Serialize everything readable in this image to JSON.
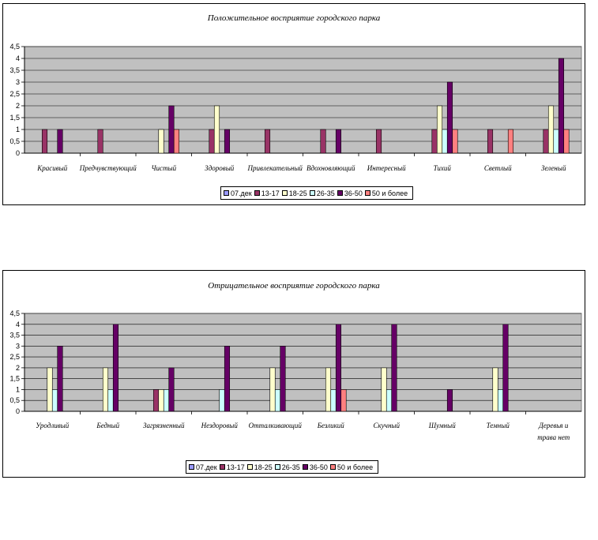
{
  "chart_data": [
    {
      "type": "bar",
      "title": "Положительное восприятие городского парка",
      "categories": [
        "Красивый",
        "Предчувствующий",
        "Чистый",
        "Здоровый",
        "Привлекательный",
        "Вдохновляющий",
        "Интересный",
        "Тихий",
        "Светлый",
        "Зеленый"
      ],
      "ylim": [
        0,
        4.5
      ],
      "yticks": [
        "0",
        "0,5",
        "1",
        "1,5",
        "2",
        "2,5",
        "3",
        "3,5",
        "4",
        "4,5"
      ],
      "grid": true,
      "legend_position": "bottom",
      "series": [
        {
          "name": "07.дек",
          "values": [
            0,
            0,
            0,
            0,
            0,
            0,
            0,
            0,
            0,
            0
          ]
        },
        {
          "name": "13-17",
          "values": [
            1,
            1,
            0,
            1,
            1,
            1,
            1,
            1,
            1,
            1
          ]
        },
        {
          "name": "18-25",
          "values": [
            0,
            0,
            1,
            2,
            0,
            0,
            0,
            2,
            0,
            2
          ]
        },
        {
          "name": "26-35",
          "values": [
            0,
            0,
            0,
            0,
            0,
            0,
            0,
            1,
            0,
            1
          ]
        },
        {
          "name": "36-50",
          "values": [
            1,
            0,
            2,
            1,
            0,
            1,
            0,
            3,
            0,
            4
          ]
        },
        {
          "name": "50 и более",
          "values": [
            0,
            0,
            1,
            0,
            0,
            0,
            0,
            1,
            1,
            1
          ]
        }
      ]
    },
    {
      "type": "bar",
      "title": "Отрицательное восприятие городского парка",
      "categories": [
        "Уродливый",
        "Бедный",
        "Загрязненный",
        "Нездоровый",
        "Отталкивающий",
        "Безликий",
        "Скучный",
        "Шумный",
        "Темный",
        "Деревья и трава нет"
      ],
      "ylim": [
        0,
        4.5
      ],
      "yticks": [
        "0",
        "0,5",
        "1",
        "1,5",
        "2",
        "2,5",
        "3",
        "3,5",
        "4",
        "4,5"
      ],
      "grid": true,
      "legend_position": "bottom",
      "series": [
        {
          "name": "07.дек",
          "values": [
            0,
            0,
            0,
            0,
            0,
            0,
            0,
            0,
            0,
            0
          ]
        },
        {
          "name": "13-17",
          "values": [
            0,
            0,
            1,
            0,
            0,
            0,
            0,
            0,
            0,
            0
          ]
        },
        {
          "name": "18-25",
          "values": [
            2,
            2,
            1,
            0,
            2,
            2,
            2,
            0,
            2,
            0
          ]
        },
        {
          "name": "26-35",
          "values": [
            1,
            1,
            1,
            1,
            1,
            1,
            1,
            0,
            1,
            0
          ]
        },
        {
          "name": "36-50",
          "values": [
            3,
            4,
            2,
            3,
            3,
            4,
            4,
            1,
            4,
            0
          ]
        },
        {
          "name": "50 и более",
          "values": [
            0,
            0,
            0,
            0,
            0,
            1,
            0,
            0,
            0,
            0
          ]
        }
      ]
    }
  ],
  "series_colors": [
    "#9999ff",
    "#993366",
    "#ffffcc",
    "#ccffff",
    "#660066",
    "#ff8080"
  ],
  "plot_bg": "#c0c0c0"
}
